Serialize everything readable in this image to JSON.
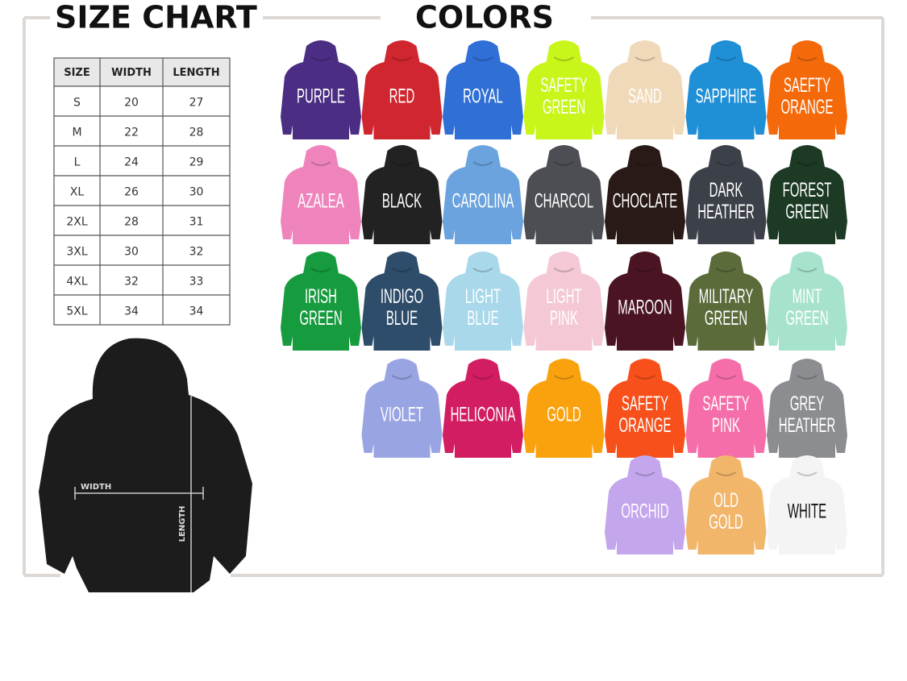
{
  "size_chart": {
    "title": "SIZE CHART",
    "table": {
      "header": [
        "SIZE",
        "WIDTH",
        "LENGTH"
      ],
      "rows": [
        [
          "S",
          20,
          27
        ],
        [
          "M",
          22,
          28
        ],
        [
          "L",
          24,
          29
        ],
        [
          "XL",
          26,
          30
        ],
        [
          "2XL",
          28,
          31
        ],
        [
          "3XL",
          30,
          32
        ],
        [
          "4XL",
          32,
          33
        ],
        [
          "5XL",
          34,
          34
        ]
      ]
    },
    "diagram": {
      "width_label": "WIDTH",
      "length_label": "LENGTH"
    }
  },
  "colors": {
    "title": "COLORS",
    "rows": [
      [
        {
          "lines": [
            "PURPLE"
          ],
          "color": "#4b2e83"
        },
        {
          "lines": [
            "RED"
          ],
          "color": "#d0262f"
        },
        {
          "lines": [
            "ROYAL"
          ],
          "color": "#2f6fd6"
        },
        {
          "lines": [
            "SAFETY",
            "GREEN"
          ],
          "color": "#c8f51a"
        },
        {
          "lines": [
            "SAND"
          ],
          "color": "#efd9b9"
        },
        {
          "lines": [
            "SAPPHIRE"
          ],
          "color": "#1f8fd6"
        },
        {
          "lines": [
            "SAEFTY",
            "ORANGE"
          ],
          "color": "#f46a0b"
        }
      ],
      [
        {
          "lines": [
            "AZALEA"
          ],
          "color": "#ef84bd"
        },
        {
          "lines": [
            "BLACK"
          ],
          "color": "#222222"
        },
        {
          "lines": [
            "CAROLINA"
          ],
          "color": "#6aa3de"
        },
        {
          "lines": [
            "CHARCOL"
          ],
          "color": "#4c4e53"
        },
        {
          "lines": [
            "CHOCLATE"
          ],
          "color": "#2a1a17"
        },
        {
          "lines": [
            "DARK",
            "HEATHER"
          ],
          "color": "#3c4049"
        },
        {
          "lines": [
            "FOREST",
            "GREEN"
          ],
          "color": "#1c3a24"
        }
      ],
      [
        {
          "lines": [
            "IRISH",
            "GREEN"
          ],
          "color": "#169b3e"
        },
        {
          "lines": [
            "INDIGO",
            "BLUE"
          ],
          "color": "#2e4d6a"
        },
        {
          "lines": [
            "LIGHT",
            "BLUE"
          ],
          "color": "#a8d8ea"
        },
        {
          "lines": [
            "LIGHT",
            "PINK"
          ],
          "color": "#f4c9d5"
        },
        {
          "lines": [
            "MAROON"
          ],
          "color": "#4a1422"
        },
        {
          "lines": [
            "MILITARY",
            "GREEN"
          ],
          "color": "#5b6b3a"
        },
        {
          "lines": [
            "MINT",
            "GREEN"
          ],
          "color": "#a7e3cc"
        }
      ],
      [
        {
          "lines": [
            "VIOLET"
          ],
          "color": "#99a4e3"
        },
        {
          "lines": [
            "HELICONIA"
          ],
          "color": "#d21d62"
        },
        {
          "lines": [
            "GOLD"
          ],
          "color": "#f9a20e"
        },
        {
          "lines": [
            "SAFETY",
            "ORANGE"
          ],
          "color": "#f7501b"
        },
        {
          "lines": [
            "SAFETY",
            "PINK"
          ],
          "color": "#f56ea9"
        },
        {
          "lines": [
            "GREY",
            "HEATHER"
          ],
          "color": "#8c8d91"
        }
      ],
      [
        {
          "lines": [
            "ORCHID"
          ],
          "color": "#c4a6ec"
        },
        {
          "lines": [
            "OLD",
            "GOLD"
          ],
          "color": "#f2b66b"
        },
        {
          "lines": [
            "WHITE"
          ],
          "color": "#f4f4f4"
        }
      ]
    ]
  }
}
